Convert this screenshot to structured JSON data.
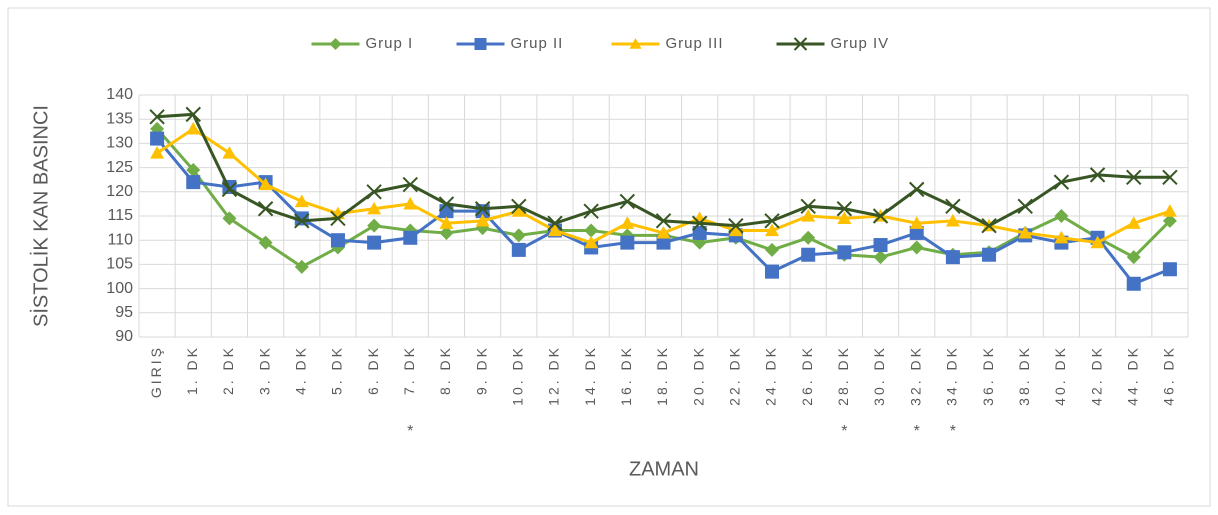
{
  "chart_data": {
    "type": "line",
    "y_label": "SİSTOLİK KAN BASINCI",
    "x_label": "ZAMAN",
    "categories": [
      "GIRIŞ",
      "1. DK",
      "2. DK",
      "3. DK",
      "4. DK",
      "5. DK",
      "6. DK",
      "7. DK",
      "8. DK",
      "9. DK",
      "10. DK",
      "12. DK",
      "14. DK",
      "16. DK",
      "18. DK",
      "20. DK",
      "22. DK",
      "24. DK",
      "26. DK",
      "28. DK",
      "30. DK",
      "32. DK",
      "34. DK",
      "36. DK",
      "38. DK",
      "40. DK",
      "42. DK",
      "44. DK",
      "46. DK"
    ],
    "category_notes": [
      null,
      null,
      null,
      null,
      null,
      null,
      null,
      "*",
      null,
      null,
      null,
      null,
      null,
      null,
      null,
      null,
      null,
      null,
      null,
      "*",
      null,
      "*",
      "*",
      null,
      null,
      null,
      null,
      null,
      null
    ],
    "series": [
      {
        "name": "Grup I",
        "color": "#70ad47",
        "marker": "diamond",
        "values": [
          133,
          124.5,
          114.5,
          109.5,
          104.5,
          108.5,
          113,
          112,
          111.5,
          112.5,
          111,
          112,
          112,
          111,
          111,
          109.5,
          110.5,
          108,
          110.5,
          107,
          106.5,
          108.5,
          107,
          107.5,
          111.5,
          115,
          110.5,
          106.5,
          114
        ]
      },
      {
        "name": "Grup II",
        "color": "#4472c4",
        "marker": "square",
        "values": [
          131,
          122,
          121,
          122,
          114.5,
          110,
          109.5,
          110.5,
          116,
          116,
          108,
          112,
          108.5,
          109.5,
          109.5,
          111.5,
          111,
          103.5,
          107,
          107.5,
          109,
          111.5,
          106.5,
          107,
          111,
          109.5,
          110.5,
          101,
          104
        ]
      },
      {
        "name": "Grup III",
        "color": "#ffc000",
        "marker": "triangle",
        "values": [
          128,
          133,
          128,
          121.5,
          118,
          115.5,
          116.5,
          117.5,
          113.5,
          114,
          116,
          112,
          109.5,
          113.5,
          111.5,
          114.5,
          112,
          112,
          115,
          114.5,
          115,
          113.5,
          114,
          113,
          111.5,
          110.5,
          109.5,
          113.5,
          116
        ]
      },
      {
        "name": "Grup IV",
        "color": "#375623",
        "marker": "x",
        "values": [
          135.5,
          136,
          120.5,
          116.5,
          114,
          114.5,
          120,
          121.5,
          117.5,
          116.5,
          117,
          113.5,
          116,
          118,
          114,
          113.5,
          113,
          114,
          117,
          116.5,
          115,
          120.5,
          117,
          113,
          117,
          122,
          123.5,
          123,
          123
        ]
      }
    ],
    "ylim": [
      90,
      140
    ],
    "yticks": [
      90,
      95,
      100,
      105,
      110,
      115,
      120,
      125,
      130,
      135,
      140
    ],
    "grid": true,
    "legend": "top"
  }
}
